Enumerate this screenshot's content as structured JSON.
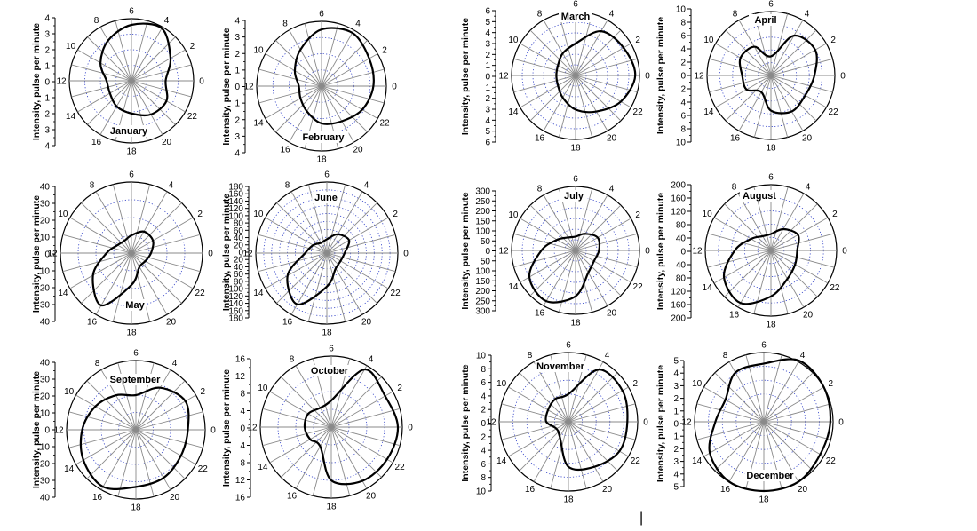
{
  "figure": {
    "ylabel": "Intensity, pulse per minute",
    "hour_labels": [
      "0",
      "2",
      "4",
      "6",
      "8",
      "10",
      "12",
      "14",
      "16",
      "18",
      "20",
      "22"
    ],
    "cursor_mark": "|"
  },
  "chart_data": [
    {
      "type": "polar-line",
      "title": "January",
      "ylabel": "Intensity, pulse per minute",
      "theta_unit": "hour",
      "ticks": [
        4,
        3,
        2,
        1,
        0,
        1,
        2,
        3,
        4
      ],
      "rmax": 4,
      "series": [
        {
          "x": [
            0,
            2,
            4,
            6,
            8,
            10,
            12,
            14,
            16,
            18,
            20,
            22
          ],
          "values": [
            2.2,
            2.9,
            3.9,
            3.6,
            3.0,
            2.3,
            1.6,
            1.6,
            1.9,
            2.1,
            2.5,
            2.6
          ]
        }
      ]
    },
    {
      "type": "polar-line",
      "title": "February",
      "ylabel": "Intensity, pulse per minute",
      "theta_unit": "hour",
      "ticks": [
        4,
        3,
        2,
        1,
        0,
        1,
        2,
        3,
        4
      ],
      "rmax": 4,
      "series": [
        {
          "x": [
            0,
            2,
            4,
            6,
            8,
            10,
            12,
            14,
            16,
            18,
            20,
            22
          ],
          "values": [
            3.2,
            3.4,
            3.8,
            3.5,
            2.6,
            1.9,
            1.4,
            1.5,
            1.8,
            2.3,
            2.5,
            2.9
          ]
        }
      ]
    },
    {
      "type": "polar-line",
      "title": "March",
      "ylabel": "Intensity, pulse per minute",
      "theta_unit": "hour",
      "ticks": [
        6,
        5,
        4,
        3,
        2,
        1,
        0,
        1,
        2,
        3,
        4,
        5,
        6
      ],
      "rmax": 6,
      "series": [
        {
          "x": [
            0,
            2,
            4,
            6,
            8,
            10,
            12,
            14,
            16,
            18,
            20,
            22
          ],
          "values": [
            5.6,
            5.2,
            4.8,
            3.0,
            2.4,
            1.9,
            1.8,
            1.9,
            2.4,
            3.2,
            3.9,
            4.9
          ]
        }
      ]
    },
    {
      "type": "polar-line",
      "title": "April",
      "ylabel": "Intensity, pulse per minute",
      "theta_unit": "hour",
      "ticks": [
        10,
        8,
        6,
        4,
        2,
        0,
        2,
        4,
        6,
        8,
        10
      ],
      "rmax": 10,
      "series": [
        {
          "x": [
            0,
            2,
            4,
            6,
            8,
            10,
            12,
            14,
            16,
            18,
            20,
            22
          ],
          "values": [
            6.8,
            8.0,
            7.2,
            3.0,
            5.2,
            5.5,
            4.5,
            4.4,
            3.0,
            5.5,
            6.5,
            6.2
          ]
        }
      ]
    },
    {
      "type": "polar-line",
      "title": "May",
      "ylabel": "Intensity, pulse per minute",
      "theta_unit": "hour",
      "ticks": [
        40,
        30,
        20,
        10,
        0,
        10,
        20,
        30,
        40
      ],
      "rmax": 40,
      "series": [
        {
          "x": [
            0,
            2,
            4,
            6,
            8,
            10,
            12,
            14,
            16,
            18,
            20,
            22
          ],
          "values": [
            11,
            14,
            14,
            10,
            8,
            9,
            14,
            25,
            34,
            18,
            9,
            9
          ]
        }
      ]
    },
    {
      "type": "polar-line",
      "title": "June",
      "ylabel": "Intensity, pulse per minute",
      "theta_unit": "hour",
      "ticks": [
        180,
        160,
        140,
        120,
        100,
        80,
        60,
        40,
        20,
        0,
        20,
        40,
        60,
        80,
        100,
        120,
        140,
        160,
        180
      ],
      "rmax": 180,
      "series": [
        {
          "x": [
            0,
            2,
            4,
            6,
            8,
            10,
            12,
            14,
            16,
            18,
            20,
            22
          ],
          "values": [
            45,
            65,
            55,
            35,
            30,
            40,
            55,
            115,
            150,
            85,
            45,
            40
          ]
        }
      ]
    },
    {
      "type": "polar-line",
      "title": "July",
      "ylabel": "Intensity, pulse per minute",
      "theta_unit": "hour",
      "ticks": [
        300,
        250,
        200,
        150,
        100,
        50,
        0,
        50,
        100,
        150,
        200,
        250,
        300
      ],
      "rmax": 300,
      "series": [
        {
          "x": [
            0,
            2,
            4,
            6,
            8,
            10,
            12,
            14,
            16,
            18,
            20,
            22
          ],
          "values": [
            110,
            120,
            90,
            65,
            70,
            100,
            160,
            250,
            275,
            215,
            120,
            100
          ]
        }
      ]
    },
    {
      "type": "polar-line",
      "title": "August",
      "ylabel": "Intensity, pulse per minute",
      "theta_unit": "hour",
      "ticks": [
        200,
        160,
        120,
        80,
        40,
        0,
        40,
        80,
        120,
        160,
        200
      ],
      "rmax": 200,
      "series": [
        {
          "x": [
            0,
            2,
            4,
            6,
            8,
            10,
            12,
            14,
            16,
            18,
            20,
            22
          ],
          "values": [
            80,
            95,
            75,
            50,
            50,
            70,
            110,
            165,
            185,
            140,
            100,
            85
          ]
        }
      ]
    },
    {
      "type": "polar-line",
      "title": "September",
      "ylabel": "Intensity, pulse per minute",
      "theta_unit": "hour",
      "ticks": [
        40,
        30,
        20,
        10,
        0,
        10,
        20,
        30,
        40
      ],
      "rmax": 40,
      "series": [
        {
          "x": [
            0,
            2,
            4,
            6,
            8,
            10,
            12,
            14,
            16,
            18,
            20,
            22
          ],
          "values": [
            30,
            33,
            28,
            20,
            23,
            27,
            31,
            35,
            38,
            33,
            32,
            30
          ]
        }
      ]
    },
    {
      "type": "polar-line",
      "title": "October",
      "ylabel": "Intensity, pulse per minute",
      "theta_unit": "hour",
      "ticks": [
        16,
        12,
        8,
        4,
        0,
        4,
        8,
        12,
        16
      ],
      "rmax": 16,
      "series": [
        {
          "x": [
            0,
            2,
            4,
            6,
            8,
            10,
            12,
            14,
            16,
            18,
            20,
            22
          ],
          "values": [
            15,
            14,
            15,
            6,
            5,
            6,
            6,
            5.5,
            5,
            12,
            14,
            14.5
          ]
        }
      ]
    },
    {
      "type": "polar-line",
      "title": "November",
      "ylabel": "Intensity, pulse per minute",
      "theta_unit": "hour",
      "ticks": [
        10,
        8,
        6,
        4,
        2,
        0,
        2,
        4,
        6,
        8,
        10
      ],
      "rmax": 10,
      "series": [
        {
          "x": [
            0,
            2,
            4,
            6,
            8,
            10,
            12,
            14,
            16,
            18,
            20,
            22
          ],
          "values": [
            8.5,
            9.0,
            8.7,
            4.0,
            3.8,
            3.4,
            3.2,
            2.0,
            2.5,
            6.5,
            7.5,
            8.5
          ]
        }
      ]
    },
    {
      "type": "polar-line",
      "title": "December",
      "ylabel": "Intensity, pulse per minute",
      "theta_unit": "hour",
      "ticks": [
        5,
        4,
        3,
        2,
        1,
        0,
        1,
        2,
        3,
        4,
        5
      ],
      "rmax": 5,
      "series": [
        {
          "x": [
            0,
            2,
            4,
            6,
            8,
            10,
            12,
            14,
            16,
            18,
            20,
            22
          ],
          "values": [
            4.8,
            5.0,
            5.1,
            4.2,
            4.1,
            3.2,
            3.5,
            4.5,
            5.0,
            5.0,
            5.0,
            4.7
          ]
        }
      ]
    }
  ]
}
